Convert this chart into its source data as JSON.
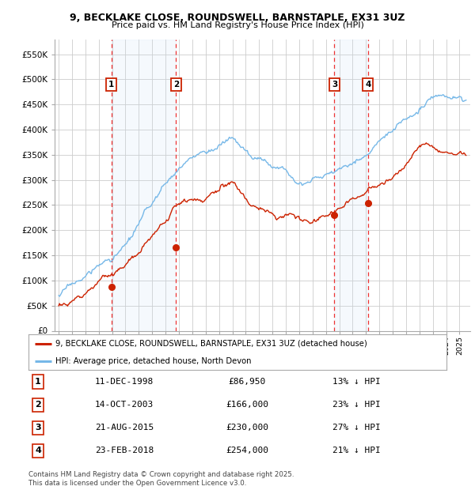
{
  "title_line1": "9, BECKLAKE CLOSE, ROUNDSWELL, BARNSTAPLE, EX31 3UZ",
  "title_line2": "Price paid vs. HM Land Registry's House Price Index (HPI)",
  "ylabel_ticks": [
    "£0",
    "£50K",
    "£100K",
    "£150K",
    "£200K",
    "£250K",
    "£300K",
    "£350K",
    "£400K",
    "£450K",
    "£500K",
    "£550K"
  ],
  "ytick_values": [
    0,
    50000,
    100000,
    150000,
    200000,
    250000,
    300000,
    350000,
    400000,
    450000,
    500000,
    550000
  ],
  "ylim": [
    0,
    580000
  ],
  "xlim_start": 1994.7,
  "xlim_end": 2025.8,
  "sale_dates_num": [
    1998.94,
    2003.79,
    2015.64,
    2018.15
  ],
  "sale_prices": [
    86950,
    166000,
    230000,
    254000
  ],
  "sale_labels": [
    "1",
    "2",
    "3",
    "4"
  ],
  "sale_info": [
    {
      "num": "1",
      "date": "11-DEC-1998",
      "price": "£86,950",
      "pct": "13% ↓ HPI"
    },
    {
      "num": "2",
      "date": "14-OCT-2003",
      "price": "£166,000",
      "pct": "23% ↓ HPI"
    },
    {
      "num": "3",
      "date": "21-AUG-2015",
      "price": "£230,000",
      "pct": "27% ↓ HPI"
    },
    {
      "num": "4",
      "date": "23-FEB-2018",
      "price": "£254,000",
      "pct": "21% ↓ HPI"
    }
  ],
  "hpi_color": "#76b8e8",
  "price_color": "#cc2200",
  "vertical_line_color": "#ee3333",
  "shade_color": "#cce0f5",
  "background_color": "#ffffff",
  "grid_color": "#cccccc",
  "legend_label_price": "9, BECKLAKE CLOSE, ROUNDSWELL, BARNSTAPLE, EX31 3UZ (detached house)",
  "legend_label_hpi": "HPI: Average price, detached house, North Devon",
  "footnote": "Contains HM Land Registry data © Crown copyright and database right 2025.\nThis data is licensed under the Open Government Licence v3.0."
}
